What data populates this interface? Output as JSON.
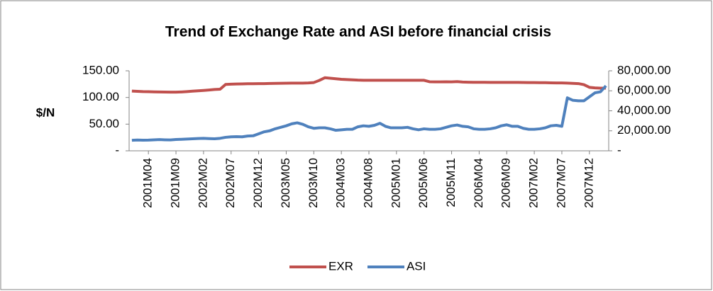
{
  "chart_data": {
    "type": "line",
    "title": "Trend of Exchange Rate and ASI before financial crisis",
    "ylabel": "$/N",
    "categories": [
      null,
      null,
      null,
      "2001M04",
      null,
      null,
      null,
      null,
      "2001M09",
      null,
      null,
      null,
      null,
      "2002M02",
      null,
      null,
      null,
      null,
      "2002M07",
      null,
      null,
      null,
      null,
      "2002M12",
      null,
      null,
      null,
      null,
      "2003M05",
      null,
      null,
      null,
      null,
      "2003M10",
      null,
      null,
      null,
      null,
      "2004M03",
      null,
      null,
      null,
      null,
      "2004M08",
      null,
      null,
      null,
      null,
      "2005M01",
      null,
      null,
      null,
      null,
      "2005M06",
      null,
      null,
      null,
      null,
      "2005M11",
      null,
      null,
      null,
      null,
      "2006M04",
      null,
      null,
      null,
      null,
      "2006M09",
      null,
      null,
      null,
      null,
      "2007M02",
      null,
      null,
      null,
      null,
      "2007M07",
      null,
      null,
      null,
      null,
      "2007M12",
      null,
      null,
      null
    ],
    "series": [
      {
        "name": "EXR",
        "color": "#c0504d",
        "axis": "y",
        "values": [
          112,
          111.5,
          111,
          110.8,
          110.5,
          110.3,
          110.2,
          110,
          110,
          110.4,
          111,
          111.8,
          112.5,
          113.2,
          114,
          115,
          115.5,
          124.5,
          125,
          125.3,
          125.5,
          125.7,
          125.8,
          126,
          126,
          126.2,
          126.4,
          126.6,
          126.8,
          127,
          127,
          127,
          127.2,
          128,
          132,
          137,
          136,
          135,
          134,
          133.5,
          133,
          132.5,
          132.3,
          132.3,
          132.3,
          132.3,
          132.3,
          132.3,
          132.3,
          132.3,
          132.3,
          132.2,
          132.2,
          132.2,
          129.5,
          129.3,
          129.3,
          129.5,
          129.2,
          129.8,
          129,
          128.6,
          128.4,
          128.4,
          128.4,
          128.3,
          128.3,
          128.3,
          128.2,
          128.2,
          128.2,
          128.1,
          128,
          128,
          127.8,
          127.7,
          127.5,
          127.3,
          127.2,
          127,
          126.5,
          126,
          124,
          119,
          118,
          117.5,
          117.5
        ]
      },
      {
        "name": "ASI",
        "color": "#4f81bd",
        "axis": "y2",
        "values": [
          10500,
          10800,
          10600,
          10700,
          11000,
          11200,
          11000,
          10900,
          11300,
          11500,
          11800,
          12000,
          12300,
          12500,
          12200,
          12000,
          12500,
          13500,
          14000,
          14200,
          14000,
          14800,
          15000,
          17000,
          19000,
          20000,
          22000,
          23500,
          25000,
          27000,
          28000,
          26500,
          24000,
          22500,
          23000,
          23000,
          22000,
          20500,
          21000,
          21500,
          21500,
          24000,
          25000,
          24500,
          25500,
          27500,
          24500,
          23000,
          23000,
          23000,
          23500,
          22000,
          21000,
          22000,
          21500,
          21500,
          22000,
          23500,
          25000,
          25800,
          24500,
          24000,
          22000,
          21500,
          21500,
          22000,
          23000,
          25000,
          26000,
          24500,
          24500,
          22500,
          21500,
          21500,
          22000,
          23000,
          25000,
          25500,
          24500,
          53000,
          50500,
          50000,
          50000,
          54000,
          58000,
          59000,
          65000
        ]
      }
    ],
    "ylim": [
      0,
      150
    ],
    "yticks": [
      {
        "value": 0,
        "label": "-"
      },
      {
        "value": 50,
        "label": "50.00"
      },
      {
        "value": 100,
        "label": "100.00"
      },
      {
        "value": 150,
        "label": "150.00"
      }
    ],
    "y2lim": [
      0,
      80000
    ],
    "y2ticks": [
      {
        "value": 0,
        "label": "-"
      },
      {
        "value": 20000,
        "label": "20,000.00"
      },
      {
        "value": 40000,
        "label": "40,000.00"
      },
      {
        "value": 60000,
        "label": "60,000.00"
      },
      {
        "value": 80000,
        "label": "80,000.00"
      }
    ],
    "grid": false,
    "legend": "bottom"
  }
}
